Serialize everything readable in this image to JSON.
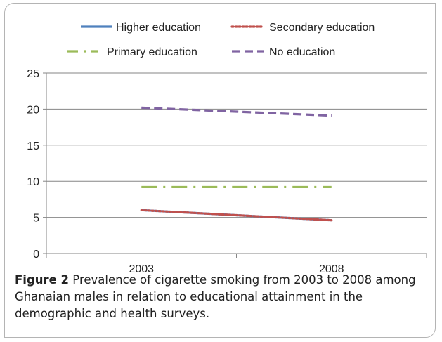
{
  "chart_data": {
    "type": "line",
    "x": [
      "2003",
      "2008"
    ],
    "ylim": [
      0,
      25
    ],
    "yticks": [
      0,
      5,
      10,
      15,
      20,
      25
    ],
    "grid": true,
    "legend_position": "top",
    "series": [
      {
        "name": "Higher education",
        "values": [
          6.0,
          4.6
        ],
        "color": "#4f81bd",
        "style": "solid"
      },
      {
        "name": "Secondary education",
        "values": [
          6.0,
          4.6
        ],
        "color": "#c0504d",
        "style": "dotted"
      },
      {
        "name": "Primary education",
        "values": [
          9.2,
          9.2
        ],
        "color": "#9bbb59",
        "style": "dash-dot"
      },
      {
        "name": "No education",
        "values": [
          20.2,
          19.1
        ],
        "color": "#8064a2",
        "style": "dashed"
      }
    ]
  },
  "caption": {
    "label": "Figure 2",
    "text": " Prevalence of cigarette smoking from 2003 to 2008 among Ghanaian males in relation to educational attainment in the demographic and health surveys."
  }
}
